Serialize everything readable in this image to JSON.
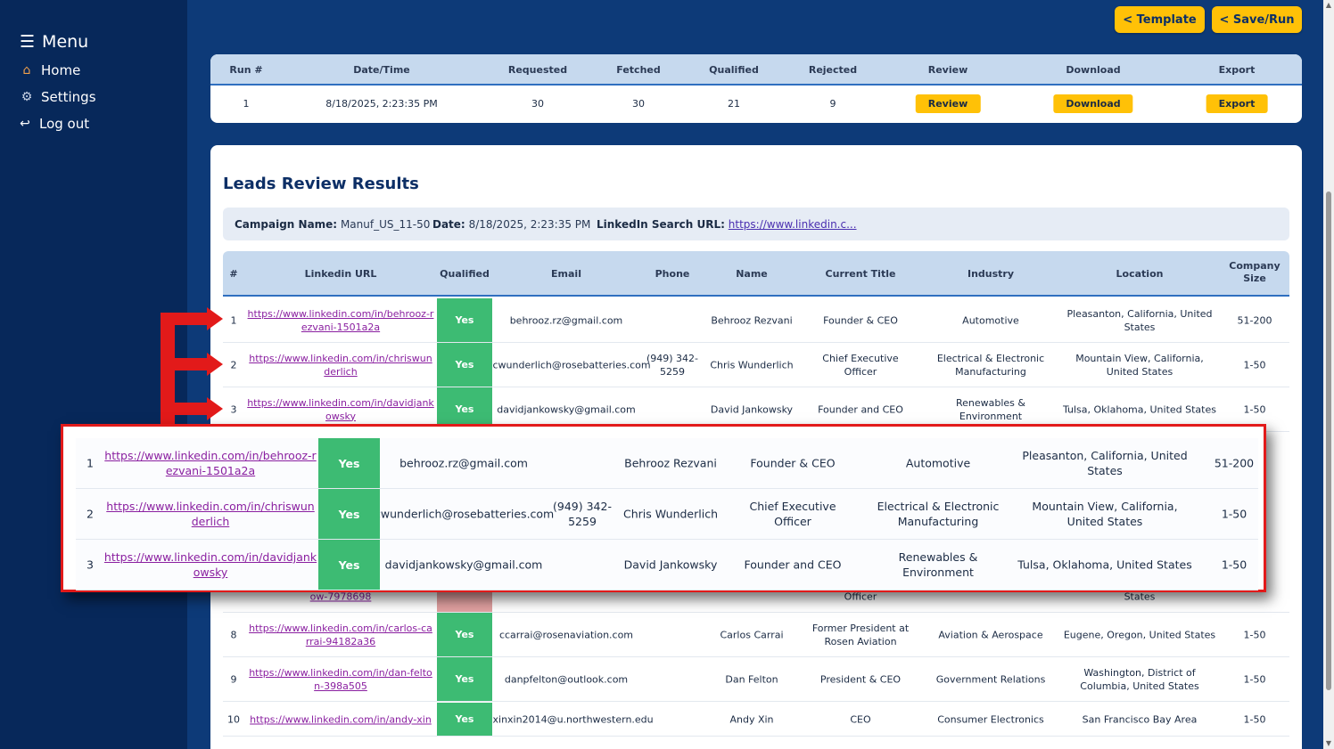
{
  "sidebar": {
    "menu_label": "Menu",
    "items": [
      {
        "label": "Home",
        "icon": "home-icon"
      },
      {
        "label": "Settings",
        "icon": "gear-icon"
      },
      {
        "label": "Log out",
        "icon": "logout-icon"
      }
    ]
  },
  "toolbar": {
    "template_label": "< Template",
    "saverun_label": "< Save/Run"
  },
  "run_table": {
    "headers": [
      "Run #",
      "Date/Time",
      "Requested",
      "Fetched",
      "Qualified",
      "Rejected",
      "Review",
      "Download",
      "Export"
    ],
    "row": {
      "run": "1",
      "datetime": "8/18/2025, 2:23:35 PM",
      "requested": "30",
      "fetched": "30",
      "qualified": "21",
      "rejected": "9",
      "review_label": "Review",
      "download_label": "Download",
      "export_label": "Export"
    }
  },
  "leads": {
    "title": "Leads Review Results",
    "campaign_label": "Campaign Name:",
    "campaign_value": "Manuf_US_11-50",
    "date_label": "Date:",
    "date_value": "8/18/2025, 2:23:35 PM",
    "search_label": "LinkedIn Search URL:",
    "search_value": "https://www.linkedin.c...",
    "headers": [
      "#",
      "Linkedin URL",
      "Qualified",
      "Email",
      "Phone",
      "Name",
      "Current Title",
      "Industry",
      "Location",
      "Company Size"
    ],
    "rows": [
      {
        "n": "1",
        "url": "https://www.linkedin.com/in/behrooz-rezvani-1501a2a",
        "q": "Yes",
        "email": "behrooz.rz@gmail.com",
        "phone": "",
        "name": "Behrooz Rezvani",
        "title": "Founder & CEO",
        "industry": "Automotive",
        "location": "Pleasanton, California, United States",
        "size": "51-200"
      },
      {
        "n": "2",
        "url": "https://www.linkedin.com/in/chriswunderlich",
        "q": "Yes",
        "email": "cwunderlich@rosebatteries.com",
        "phone": "(949) 342-5259",
        "name": "Chris Wunderlich",
        "title": "Chief Executive Officer",
        "industry": "Electrical & Electronic Manufacturing",
        "location": "Mountain View, California, United States",
        "size": "1-50"
      },
      {
        "n": "3",
        "url": "https://www.linkedin.com/in/davidjankowsky",
        "q": "Yes",
        "email": "davidjankowsky@gmail.com",
        "phone": "",
        "name": "David Jankowsky",
        "title": "Founder and CEO",
        "industry": "Renewables & Environment",
        "location": "Tulsa, Oklahoma, United States",
        "size": "1-50"
      },
      {
        "n": "8",
        "url": "https://www.linkedin.com/in/carlos-carrai-94182a36",
        "q": "Yes",
        "email": "ccarrai@rosenaviation.com",
        "phone": "",
        "name": "Carlos Carrai",
        "title": "Former President at Rosen Aviation",
        "industry": "Aviation & Aerospace",
        "location": "Eugene, Oregon, United States",
        "size": "1-50"
      },
      {
        "n": "9",
        "url": "https://www.linkedin.com/in/dan-felton-398a505",
        "q": "Yes",
        "email": "danpfelton@outlook.com",
        "phone": "",
        "name": "Dan Felton",
        "title": "President & CEO",
        "industry": "Government Relations",
        "location": "Washington, District of Columbia, United States",
        "size": "1-50"
      },
      {
        "n": "10",
        "url": "https://www.linkedin.com/in/andy-xin",
        "q": "Yes",
        "email": "xinxin2014@u.northwestern.edu",
        "phone": "",
        "name": "Andy Xin",
        "title": "CEO",
        "industry": "Consumer Electronics",
        "location": "San Francisco Bay Area",
        "size": "1-50"
      }
    ],
    "partial_row": {
      "url_tail": "ow-7978698",
      "title_tail": "Officer",
      "location_tail": "States"
    }
  },
  "colors": {
    "sidebar": "#07285a",
    "background": "#0d3a78",
    "accent": "#ffc107",
    "yes": "#3dbb73",
    "highlight": "#e21a1a"
  }
}
